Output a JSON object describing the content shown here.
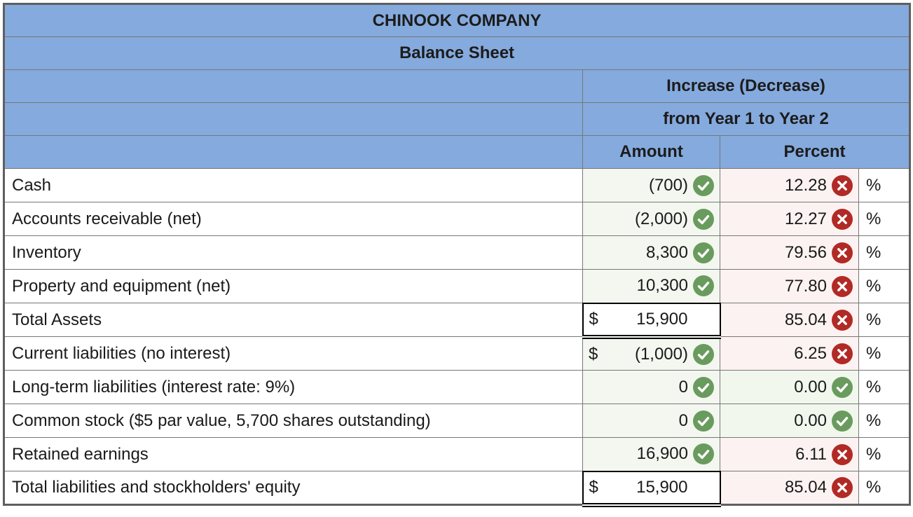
{
  "header": {
    "company": "CHINOOK COMPANY",
    "statement": "Balance Sheet",
    "group_title": "Increase (Decrease)",
    "group_subtitle": "from Year 1 to Year 2",
    "col_amount": "Amount",
    "col_percent": "Percent"
  },
  "unit_symbol": "%",
  "colors": {
    "header_blue": "#85aadd",
    "correct_green": "#6a9b5e",
    "incorrect_red": "#b12a25",
    "answered_bg_green": "#f3f7f0",
    "incorrect_bg_pink": "#fdf2f2"
  },
  "icons": {
    "correct": "check-icon",
    "incorrect": "x-icon"
  },
  "rows": [
    {
      "label": "Cash",
      "currency": "",
      "amount": "(700)",
      "amount_status": "correct",
      "percent": "12.28",
      "percent_status": "incorrect",
      "total": false
    },
    {
      "label": "Accounts receivable (net)",
      "currency": "",
      "amount": "(2,000)",
      "amount_status": "correct",
      "percent": "12.27",
      "percent_status": "incorrect",
      "total": false
    },
    {
      "label": "Inventory",
      "currency": "",
      "amount": "8,300",
      "amount_status": "correct",
      "percent": "79.56",
      "percent_status": "incorrect",
      "total": false
    },
    {
      "label": "Property and equipment (net)",
      "currency": "",
      "amount": "10,300",
      "amount_status": "correct",
      "percent": "77.80",
      "percent_status": "incorrect",
      "total": false
    },
    {
      "label": "Total Assets",
      "currency": "$",
      "amount": "15,900",
      "amount_status": "none",
      "percent": "85.04",
      "percent_status": "incorrect",
      "total": true
    },
    {
      "label": "Current liabilities (no interest)",
      "currency": "$",
      "amount": "(1,000)",
      "amount_status": "correct",
      "percent": "6.25",
      "percent_status": "incorrect",
      "total": false
    },
    {
      "label": "Long-term liabilities (interest rate: 9%)",
      "currency": "",
      "amount": "0",
      "amount_status": "correct",
      "percent": "0.00",
      "percent_status": "correct",
      "total": false
    },
    {
      "label": "Common stock ($5 par value, 5,700 shares outstanding)",
      "currency": "",
      "amount": "0",
      "amount_status": "correct",
      "percent": "0.00",
      "percent_status": "correct",
      "total": false
    },
    {
      "label": "Retained earnings",
      "currency": "",
      "amount": "16,900",
      "amount_status": "correct",
      "percent": "6.11",
      "percent_status": "incorrect",
      "total": false
    },
    {
      "label": "Total liabilities and stockholders' equity",
      "currency": "$",
      "amount": "15,900",
      "amount_status": "none",
      "percent": "85.04",
      "percent_status": "incorrect",
      "total": true
    }
  ]
}
